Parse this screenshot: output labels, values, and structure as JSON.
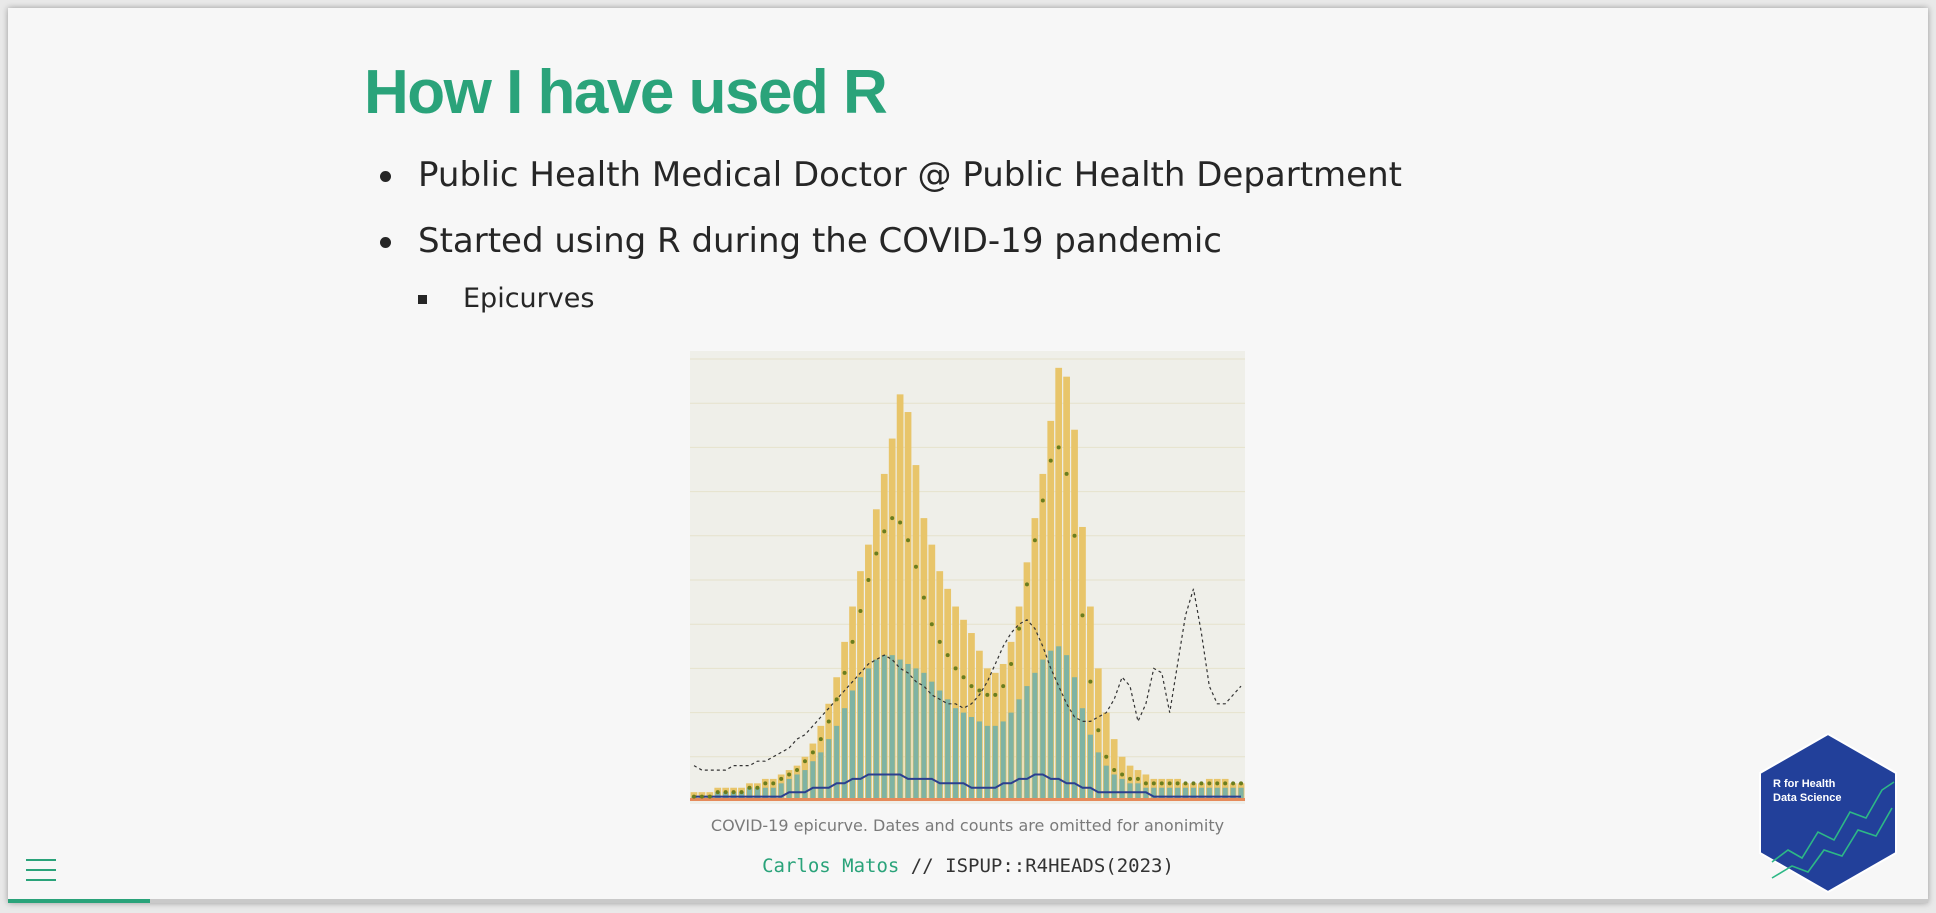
{
  "slide": {
    "title": "How I have used R",
    "bullets": [
      {
        "text": "Public Health Medical Doctor @ Public Health Department"
      },
      {
        "text": "Started using R during the COVID-19 pandemic",
        "sub": [
          "Epicurves"
        ]
      }
    ],
    "figure": {
      "caption": "COVID-19 epicurve. Dates and counts are omitted for anonimity"
    },
    "footer": {
      "author": "Carlos Matos",
      "separator": " // ",
      "event": "ISPUP::R4HEADS(2023)"
    },
    "logo": {
      "line1": "R for Health",
      "line2": "Data Science",
      "fill_color": "#22409a",
      "line_color": "#2db886"
    },
    "progress": {
      "value": 0.074
    },
    "menu_icon": "hamburger-icon",
    "colors": {
      "accent": "#2aa37a",
      "bar_total": "#e8c56a",
      "bar_subset": "#7fb3a3",
      "line_blue": "#2c3f8f",
      "dots": "#6b7d1e",
      "baseline": "#e58a5a"
    }
  },
  "chart_data": {
    "type": "bar",
    "title": "",
    "xlabel": "",
    "ylabel": "",
    "grid": true,
    "ylim": [
      0,
      100
    ],
    "series": [
      {
        "values": [
          2,
          2,
          2,
          3,
          3,
          3,
          3,
          4,
          4,
          5,
          5,
          6,
          7,
          8,
          10,
          13,
          17,
          22,
          28,
          36,
          44,
          52,
          58,
          66,
          74,
          82,
          92,
          88,
          76,
          64,
          58,
          52,
          48,
          44,
          41,
          38,
          34,
          30,
          29,
          31,
          36,
          44,
          54,
          64,
          74,
          86,
          98,
          96,
          84,
          62,
          44,
          30,
          20,
          14,
          10,
          8,
          7,
          6,
          5,
          5,
          5,
          5,
          4,
          4,
          4,
          5,
          5,
          5,
          4,
          4
        ]
      },
      {
        "values": [
          1,
          1,
          1,
          2,
          2,
          2,
          2,
          3,
          3,
          3,
          3,
          4,
          5,
          6,
          7,
          9,
          11,
          14,
          17,
          21,
          25,
          28,
          30,
          32,
          33,
          33,
          32,
          31,
          30,
          29,
          27,
          25,
          23,
          21,
          20,
          19,
          18,
          17,
          17,
          18,
          20,
          23,
          26,
          29,
          32,
          34,
          35,
          33,
          28,
          21,
          15,
          11,
          8,
          6,
          5,
          4,
          4,
          3,
          3,
          3,
          3,
          3,
          3,
          3,
          3,
          3,
          3,
          3,
          3,
          3
        ]
      },
      {
        "values": [
          1,
          1,
          1,
          1,
          1,
          1,
          1,
          1,
          1,
          1,
          1,
          1,
          2,
          2,
          2,
          3,
          3,
          3,
          4,
          4,
          5,
          5,
          6,
          6,
          6,
          6,
          6,
          5,
          5,
          5,
          5,
          4,
          4,
          4,
          4,
          3,
          3,
          3,
          3,
          4,
          4,
          5,
          5,
          6,
          6,
          5,
          5,
          4,
          4,
          3,
          3,
          2,
          2,
          2,
          2,
          2,
          2,
          2,
          1,
          1,
          1,
          1,
          1,
          1,
          1,
          1,
          1,
          1,
          1,
          1
        ]
      },
      {
        "values": [
          8,
          7,
          7,
          7,
          7,
          8,
          8,
          8,
          9,
          9,
          10,
          11,
          12,
          14,
          15,
          17,
          19,
          21,
          23,
          25,
          27,
          29,
          31,
          32,
          33,
          32,
          30,
          29,
          27,
          26,
          24,
          23,
          22,
          22,
          21,
          22,
          24,
          27,
          31,
          35,
          38,
          40,
          41,
          39,
          35,
          30,
          26,
          22,
          19,
          18,
          18,
          19,
          20,
          23,
          28,
          26,
          18,
          22,
          30,
          29,
          20,
          31,
          42,
          48,
          38,
          26,
          22,
          22,
          24,
          26
        ]
      },
      {
        "values": [
          1,
          1,
          1,
          2,
          2,
          2,
          2,
          3,
          3,
          4,
          4,
          5,
          6,
          7,
          9,
          11,
          14,
          18,
          23,
          29,
          36,
          43,
          50,
          56,
          61,
          64,
          63,
          59,
          53,
          46,
          40,
          36,
          33,
          30,
          28,
          26,
          25,
          24,
          24,
          26,
          31,
          39,
          49,
          59,
          68,
          77,
          80,
          74,
          60,
          42,
          27,
          16,
          10,
          7,
          6,
          5,
          5,
          4,
          4,
          4,
          4,
          4,
          4,
          4,
          4,
          4,
          4,
          4,
          4,
          4
        ]
      }
    ]
  }
}
